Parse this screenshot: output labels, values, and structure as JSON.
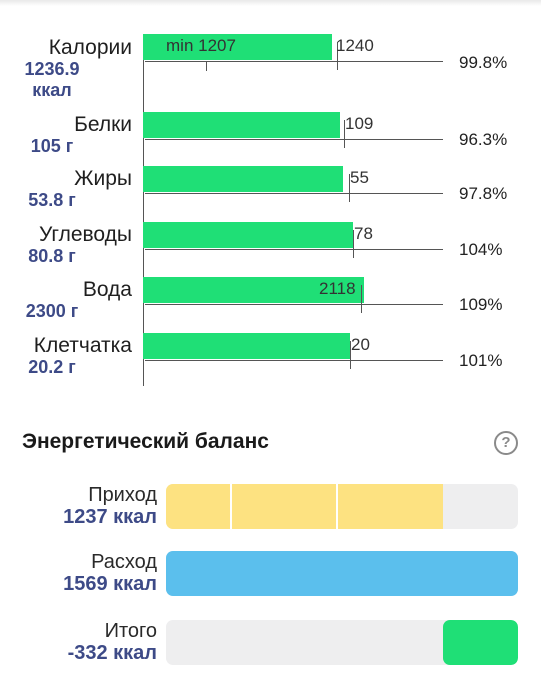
{
  "nutrients": [
    {
      "name": "Калории",
      "amount": "1236.9",
      "unit": "ккал",
      "fill": 0.6346,
      "target": 0.6506,
      "target_label": "1240",
      "min_label": "min 1207",
      "min": 0.213,
      "percent": "99.8%"
    },
    {
      "name": "Белки",
      "amount": "105 г",
      "fill": 0.6602,
      "target": 0.6757,
      "target_label": "109",
      "percent": "96.3%"
    },
    {
      "name": "Жиры",
      "amount": "53.8 г",
      "fill": 0.6695,
      "target": 0.6897,
      "target_label": "55",
      "percent": "97.8%"
    },
    {
      "name": "Углеводы",
      "amount": "80.8 г",
      "fill": 0.7034,
      "target": 0.7034,
      "target_label": "78",
      "percent": "104%"
    },
    {
      "name": "Вода",
      "amount": "2300 г",
      "fill": 0.7401,
      "target": 0.7316,
      "target_label": "2118",
      "percent": "109%"
    },
    {
      "name": "Клетчатка",
      "amount": "20.2 г",
      "fill": 0.6949,
      "target": 0.6949,
      "target_label": "20",
      "percent": "101%"
    }
  ],
  "energy": {
    "title": "Энергетический баланс",
    "help_icon": "question-circle-icon",
    "rows": [
      {
        "label": "Приход",
        "value": "1237 ккал",
        "fill_color": "#fde281",
        "fill_start": 0,
        "fill_end": 0.787,
        "segments": [
          0.182,
          0.483
        ]
      },
      {
        "label": "Расход",
        "value": "1569 ккал",
        "fill_color": "#5bbfed",
        "fill_start": 0,
        "fill_end": 1.0,
        "segments": []
      },
      {
        "label": "Итого",
        "value": "-332 ккал",
        "fill_color": "#1fdf76",
        "fill_start": 0.787,
        "fill_end": 1.0,
        "segments": []
      }
    ]
  },
  "colors": {
    "bar_green": "#1fdf76",
    "value_blue": "#3d4a87"
  }
}
